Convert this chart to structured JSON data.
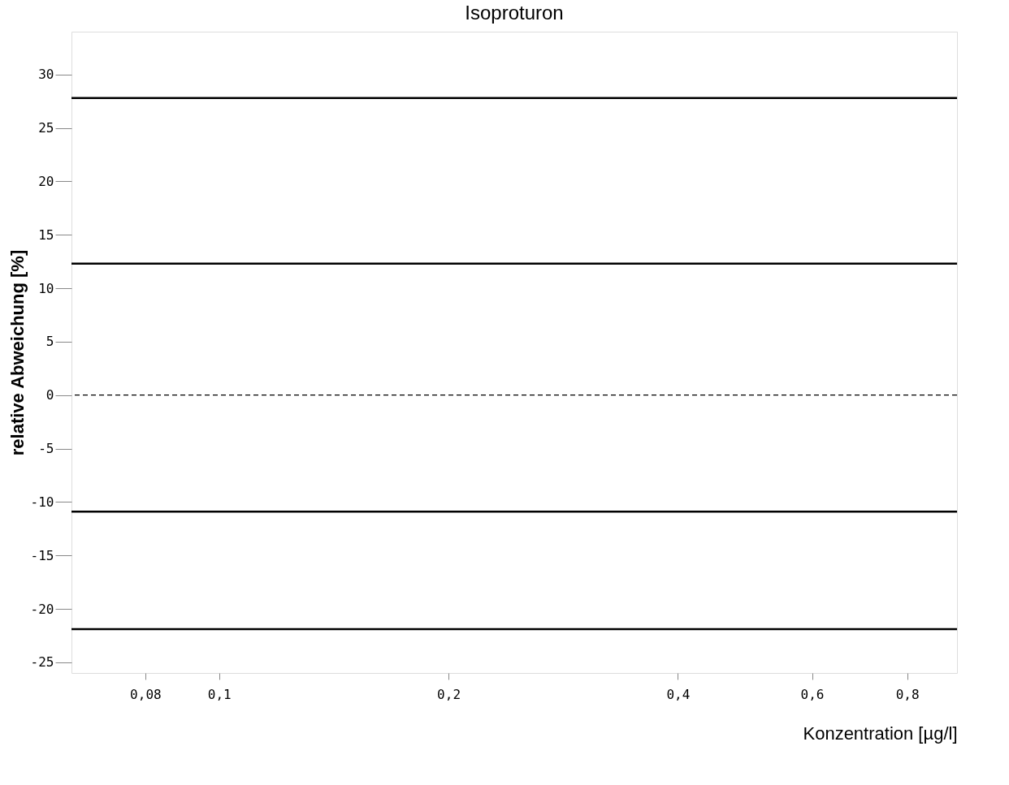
{
  "chart_data": {
    "type": "line",
    "title": "Isoproturon",
    "xlabel": "Konzentration [µg/l]",
    "ylabel": "relative Abweichung [%]",
    "log": "x",
    "xlim": [
      0.064,
      0.93
    ],
    "xticks": [
      {
        "value": 0.08,
        "label": "0,08"
      },
      {
        "value": 0.1,
        "label": "0,1"
      },
      {
        "value": 0.2,
        "label": "0,2"
      },
      {
        "value": 0.4,
        "label": "0,4"
      },
      {
        "value": 0.6,
        "label": "0,6"
      },
      {
        "value": 0.8,
        "label": "0,8"
      }
    ],
    "ylim": [
      -26,
      34
    ],
    "yticks": [
      -25,
      -20,
      -15,
      -10,
      -5,
      0,
      5,
      10,
      15,
      20,
      25,
      30
    ],
    "ref_lines": [
      {
        "axis": "y",
        "value": 27.8,
        "color": "#000000",
        "line_style": "solid"
      },
      {
        "axis": "y",
        "value": 12.3,
        "color": "#000000",
        "line_style": "solid"
      },
      {
        "axis": "y",
        "value": 0,
        "color": "#000000",
        "line_style": "dashed"
      },
      {
        "axis": "y",
        "value": -10.9,
        "color": "#000000",
        "line_style": "solid"
      },
      {
        "axis": "y",
        "value": -21.9,
        "color": "#000000",
        "line_style": "solid"
      }
    ]
  }
}
